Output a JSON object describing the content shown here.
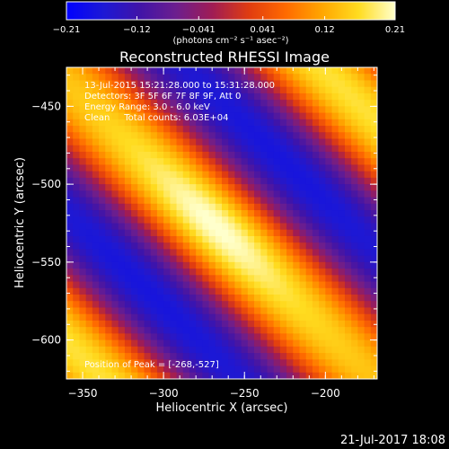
{
  "chart_data": {
    "type": "heatmap",
    "title": "Reconstructed RHESSI Image",
    "xlabel": "Heliocentric X (arcsec)",
    "ylabel": "Heliocentric Y (arcsec)",
    "xlim": [
      -360,
      -168
    ],
    "ylim": [
      -625,
      -425
    ],
    "x_ticks": [
      -350,
      -300,
      -250,
      -200
    ],
    "x_tick_labels": [
      "−350",
      "−300",
      "−250",
      "−200"
    ],
    "y_ticks": [
      -450,
      -500,
      -550,
      -600
    ],
    "y_tick_labels": [
      "−450",
      "−500",
      "−550",
      "−600"
    ],
    "colorbar": {
      "range": [
        -0.21,
        0.21
      ],
      "ticks": [
        -0.21,
        -0.12,
        -0.041,
        0.041,
        0.12,
        0.21
      ],
      "tick_labels": [
        "−0.21",
        "−0.12",
        "−0.041",
        "0.041",
        "0.12",
        "0.21"
      ],
      "unit_label": "(photons cm⁻² s⁻¹ asec⁻²)",
      "colormap": [
        "#0000ff",
        "#1c18d6",
        "#4014a8",
        "#6c1e8e",
        "#a01c54",
        "#e03c10",
        "#ff6a00",
        "#ffa600",
        "#ffdc20",
        "#ffffcc"
      ]
    },
    "annotations": [
      "13-Jul-2015 15:21:28.000 to 15:31:28.000",
      "Detectors: 3F 5F 6F 7F 8F 9F, Att 0",
      "Energy Range: 3.0 - 6.0 keV",
      "Clean     Total counts: 6.03E+04"
    ],
    "peak_label": "Position of Peak = [-268,-527]",
    "peak": [
      -268,
      -527
    ],
    "footer_timestamp": "21-Jul-2017 18:08"
  }
}
